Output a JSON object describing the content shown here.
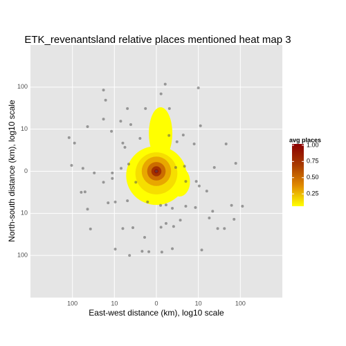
{
  "chart_data": {
    "type": "scatter",
    "title": "ETK_revenantsland relative places mentioned heat map 3",
    "x_label": "East-west distance (km), log10 scale",
    "y_label": "North-south distance (km), log10 scale",
    "xlim": [
      -3,
      3
    ],
    "ylim": [
      -3,
      3
    ],
    "xticks": [
      {
        "value": -2,
        "label": "100"
      },
      {
        "value": -1,
        "label": "10"
      },
      0,
      {
        "value": 1,
        "label": "10"
      },
      {
        "value": 2,
        "label": "100"
      }
    ],
    "yticks": [
      {
        "value": -2,
        "label": "100"
      },
      {
        "value": -1,
        "label": "10"
      },
      0,
      {
        "value": 1,
        "label": "10"
      },
      {
        "value": 2,
        "label": "100"
      }
    ],
    "grid": true,
    "point_color": "#555555",
    "x": [
      -1.26,
      -1.21,
      0.21,
      1.0,
      0.11,
      -0.69,
      -0.26,
      0.31,
      -1.64,
      -1.26,
      -0.85,
      -0.61,
      -1.07,
      -0.39,
      -0.8,
      -0.75,
      0.64,
      0.3,
      0.49,
      0.9,
      1.05,
      1.66,
      -2.08,
      -1.95,
      -2.02,
      -1.75,
      -1.48,
      -1.05,
      -0.84,
      -0.66,
      -1.26,
      -1.05,
      -0.49,
      0.46,
      0.67,
      0.7,
      0.95,
      1.02,
      1.2,
      1.38,
      1.89,
      -1.7,
      -1.79,
      -1.64,
      -1.15,
      -0.98,
      -0.69,
      -0.21,
      0.1,
      0.23,
      0.38,
      0.7,
      0.93,
      1.26,
      1.34,
      1.46,
      1.62,
      1.79,
      2.05,
      1.85,
      -1.57,
      -0.8,
      -0.56,
      -0.28,
      -0.34,
      -0.18,
      0.11,
      0.23,
      0.41,
      0.57,
      -0.98,
      -0.64,
      0.13,
      0.38,
      1.08,
      0.0
    ],
    "values": [
      1.93,
      1.69,
      2.07,
      1.98,
      1.84,
      1.49,
      1.49,
      1.49,
      1.06,
      1.24,
      1.19,
      1.11,
      0.95,
      0.78,
      0.67,
      0.57,
      0.86,
      0.85,
      0.7,
      0.65,
      1.08,
      0.65,
      0.8,
      0.67,
      0.14,
      0.07,
      -0.04,
      -0.04,
      0.07,
      0.17,
      -0.26,
      -0.17,
      -0.26,
      0.09,
      0.12,
      -0.24,
      -0.24,
      -0.35,
      -0.47,
      0.09,
      0.19,
      -0.49,
      -0.5,
      -0.9,
      -0.75,
      -0.73,
      -0.7,
      -0.73,
      -0.81,
      -0.8,
      -0.88,
      -0.83,
      -0.86,
      -1.11,
      -0.95,
      -1.36,
      -1.36,
      -0.81,
      -0.83,
      -1.14,
      -1.37,
      -1.36,
      -1.34,
      -1.57,
      -1.9,
      -1.91,
      -1.33,
      -1.24,
      -1.31,
      -1.16,
      -1.85,
      -2.0,
      -1.92,
      -1.84,
      -1.87,
      0.0
    ],
    "heat": [
      {
        "cx": 0,
        "cy": -0.1,
        "rx": 0.72,
        "ry": 0.7,
        "level": 0.06
      },
      {
        "cx": 0.1,
        "cy": 0.9,
        "rx": 0.28,
        "ry": 0.62,
        "level": 0.06
      },
      {
        "cx": 0.55,
        "cy": -0.25,
        "rx": 0.25,
        "ry": 0.35,
        "level": 0.06
      },
      {
        "cx": 0,
        "cy": -0.05,
        "rx": 0.5,
        "ry": 0.5,
        "level": 0.15
      },
      {
        "cx": 0,
        "cy": 0,
        "rx": 0.35,
        "ry": 0.35,
        "level": 0.3
      },
      {
        "cx": 0,
        "cy": 0,
        "rx": 0.22,
        "ry": 0.22,
        "level": 0.5
      },
      {
        "cx": 0,
        "cy": 0,
        "rx": 0.12,
        "ry": 0.12,
        "level": 0.75
      },
      {
        "cx": 0,
        "cy": 0,
        "rx": 0.05,
        "ry": 0.05,
        "level": 0.95
      }
    ],
    "legend_title": "avg places",
    "colorbar_lim": [
      0.06,
      1.02
    ],
    "colorbar_ticks": [
      {
        "value": 1,
        "label": "1.00"
      },
      0.75,
      {
        "value": 0.5,
        "label": "0.50"
      },
      0.25
    ],
    "colors": [
      "#ffff00",
      "#e08a00",
      "#a83a00",
      "#8b0000"
    ]
  }
}
